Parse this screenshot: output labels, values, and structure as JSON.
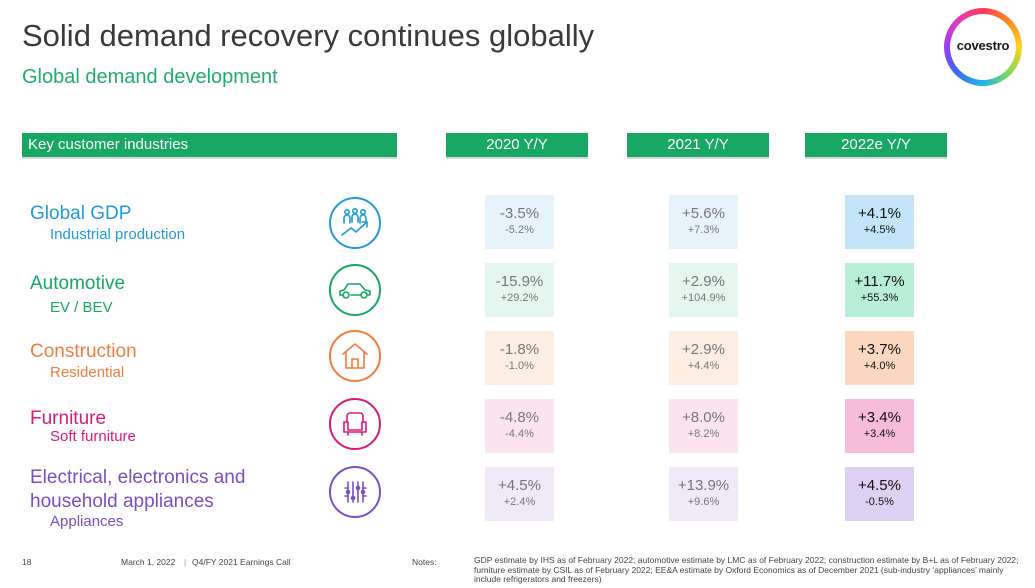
{
  "title": "Solid demand recovery continues globally",
  "subtitle": "Global demand development",
  "logo": {
    "text": "covestro"
  },
  "header": {
    "key": "Key customer industries",
    "col2020": "2020 Y/Y",
    "col2021": "2021 Y/Y",
    "col2022": "2022e Y/Y"
  },
  "rows": [
    {
      "name": "Global GDP",
      "sub": "Industrial production",
      "icon": "people-growth-icon",
      "color": "#1f9bd7",
      "v2020": "-3.5%",
      "s2020": "-5.2%",
      "v2021": "+5.6%",
      "s2021": "+7.3%",
      "v2022": "+4.1%",
      "s2022": "+4.5%"
    },
    {
      "name": "Automotive",
      "sub": "EV / BEV",
      "icon": "car-icon",
      "color": "#17a864",
      "v2020": "-15.9%",
      "s2020": "+29.2%",
      "v2021": "+2.9%",
      "s2021": "+104.9%",
      "v2022": "+11.7%",
      "s2022": "+55.3%"
    },
    {
      "name": "Construction",
      "sub": "Residential",
      "icon": "house-icon",
      "color": "#f07e3c",
      "v2020": "-1.8%",
      "s2020": "-1.0%",
      "v2021": "+2.9%",
      "s2021": "+4.4%",
      "v2022": "+3.7%",
      "s2022": "+4.0%"
    },
    {
      "name": "Furniture",
      "sub": "Soft furniture",
      "icon": "armchair-icon",
      "color": "#d81b7b",
      "v2020": "-4.8%",
      "s2020": "-4.4%",
      "v2021": "+8.0%",
      "s2021": "+8.2%",
      "v2022": "+3.4%",
      "s2022": "+3.4%"
    },
    {
      "name": "Electrical, electronics and",
      "name2": "household appliances",
      "sub": "Appliances",
      "icon": "chip-icon",
      "color": "#7b4fc0",
      "v2020": "+4.5%",
      "s2020": "+2.4%",
      "v2021": "+13.9%",
      "s2021": "+9.6%",
      "v2022": "+4.5%",
      "s2022": "-0.5%"
    }
  ],
  "footer": {
    "page": "18",
    "date": "March 1, 2022",
    "event": "Q4/FY 2021 Earnings Call",
    "notes_label": "Notes:",
    "notes_text": "GDP estimate by IHS as of February 2022; automotive estimate by LMC as of February 2022; construction estimate by B+L as of February 2022; furniture estimate by CSIL as of February 2022; EE&A estimate by Oxford Economics as of December 2021 (sub-industry ‘appliances’ mainly include refrigerators and freezers)"
  }
}
